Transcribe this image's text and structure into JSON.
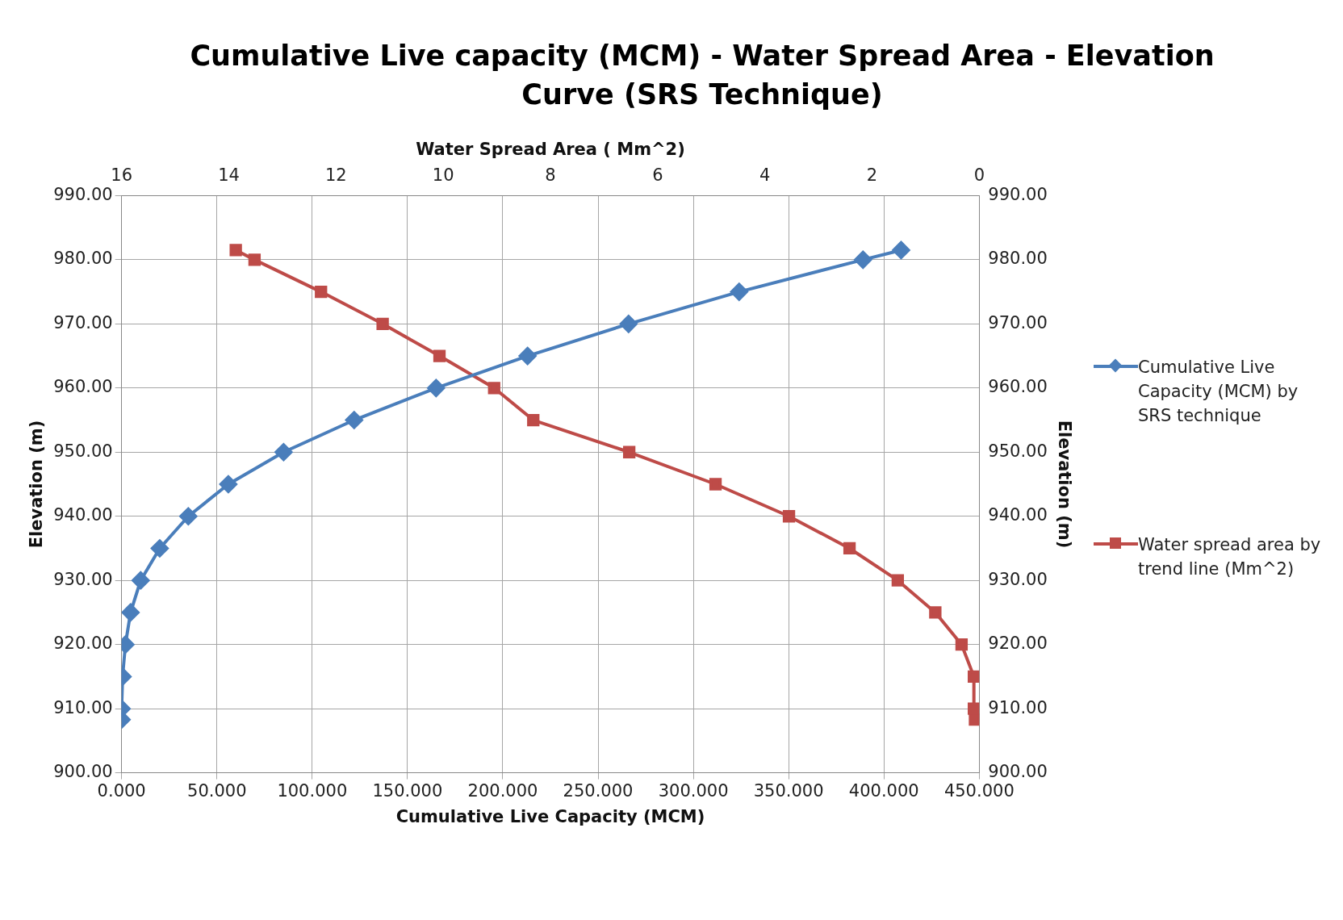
{
  "chart_data": {
    "type": "line",
    "title": "Cumulative Live capacity (MCM) - Water Spread Area - Elevation Curve (SRS Technique)",
    "xlabel": "Cumulative Live Capacity (MCM)",
    "x2label": "Water Spread Area ( Mm^2)",
    "ylabel": "Elevation (m)",
    "y2label": "Elevation (m)",
    "xlim": [
      0,
      450
    ],
    "xticks": [
      {
        "value": 0,
        "label": "0.000"
      },
      {
        "value": 50,
        "label": "50.000"
      },
      {
        "value": 100,
        "label": "100.000"
      },
      {
        "value": 150,
        "label": "150.000"
      },
      {
        "value": 200,
        "label": "200.000"
      },
      {
        "value": 250,
        "label": "250.000"
      },
      {
        "value": 300,
        "label": "300.000"
      },
      {
        "value": 350,
        "label": "350.000"
      },
      {
        "value": 400,
        "label": "400.000"
      },
      {
        "value": 450,
        "label": "450.000"
      }
    ],
    "x2lim": [
      16,
      0
    ],
    "x2ticks": [
      16,
      14,
      12,
      10,
      8,
      6,
      4,
      2,
      0
    ],
    "ylim": [
      900,
      990
    ],
    "yticks": [
      {
        "value": 900,
        "label": "900.00"
      },
      {
        "value": 910,
        "label": "910.00"
      },
      {
        "value": 920,
        "label": "920.00"
      },
      {
        "value": 930,
        "label": "930.00"
      },
      {
        "value": 940,
        "label": "940.00"
      },
      {
        "value": 950,
        "label": "950.00"
      },
      {
        "value": 960,
        "label": "960.00"
      },
      {
        "value": 970,
        "label": "970.00"
      },
      {
        "value": 980,
        "label": "980.00"
      },
      {
        "value": 990,
        "label": "990.00"
      }
    ],
    "y2lim": [
      900,
      990
    ],
    "y2ticks": [
      {
        "value": 900,
        "label": "900.00"
      },
      {
        "value": 910,
        "label": "910.00"
      },
      {
        "value": 920,
        "label": "920.00"
      },
      {
        "value": 930,
        "label": "930.00"
      },
      {
        "value": 940,
        "label": "940.00"
      },
      {
        "value": 950,
        "label": "950.00"
      },
      {
        "value": 960,
        "label": "960.00"
      },
      {
        "value": 970,
        "label": "970.00"
      },
      {
        "value": 980,
        "label": "980.00"
      },
      {
        "value": 990,
        "label": "990.00"
      }
    ],
    "grid": true,
    "legend": "right",
    "line_style": "solid",
    "series": [
      {
        "name": "Cumulative Live Capacity (MCM) by SRS technique",
        "color": "#4a7ebb",
        "marker": "diamond",
        "x": [
          0,
          0,
          0.5,
          2,
          4.7,
          10,
          20,
          35,
          56,
          85,
          122,
          165,
          213,
          266,
          324,
          389,
          409
        ],
        "values": [
          908.3,
          910,
          915,
          920,
          925,
          930,
          935,
          940,
          945,
          950,
          955,
          960,
          965,
          970,
          975,
          980,
          981.5
        ]
      },
      {
        "name": "Water spread area by trend line (Mm^2)",
        "color": "#be4b48",
        "marker": "square",
        "axis": "x2",
        "x": [
          0.08,
          0.1,
          0.1,
          0.33,
          0.82,
          1.52,
          2.42,
          3.55,
          4.92,
          6.53,
          8.32,
          9.05,
          10.07,
          11.13,
          12.28,
          13.52,
          13.87
        ],
        "values": [
          908.3,
          910,
          915,
          920,
          925,
          930,
          935,
          940,
          945,
          950,
          955,
          960,
          965,
          970,
          975,
          980,
          981.5
        ]
      }
    ]
  }
}
